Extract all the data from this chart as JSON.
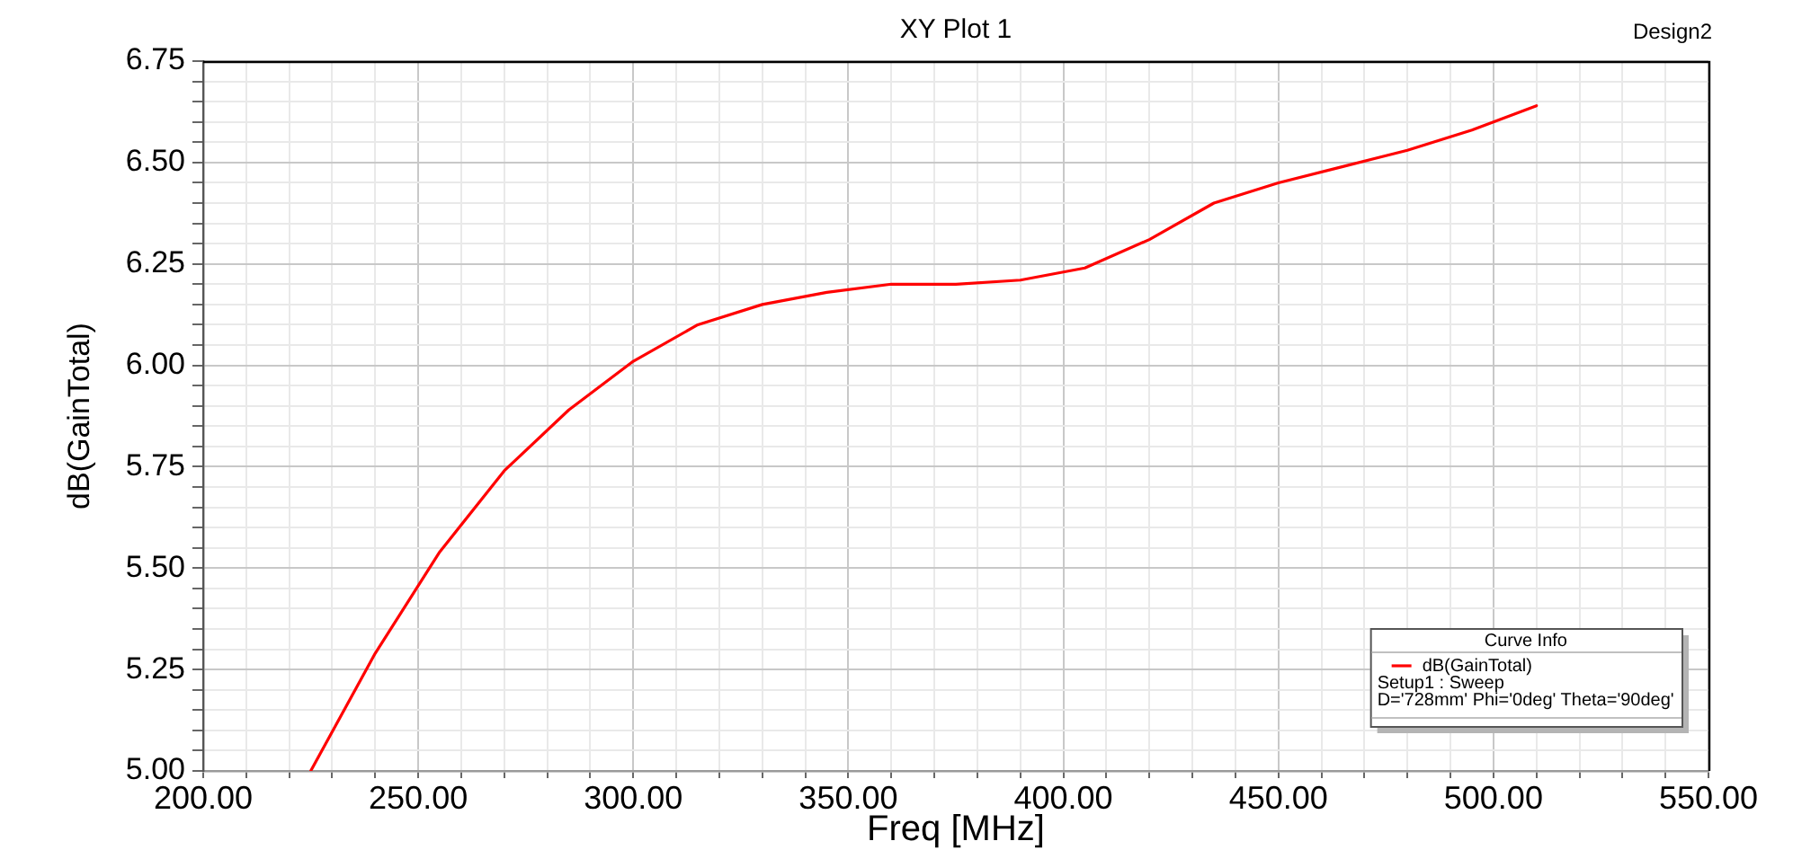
{
  "chart_data": {
    "type": "line",
    "title": "XY Plot 1",
    "xlabel": "Freq [MHz]",
    "ylabel": "dB(GainTotal)",
    "legend_title": "Curve Info",
    "annotations": [
      "Design2",
      "Setup1 : Sweep",
      "D='728mm' Phi='0deg' Theta='90deg'"
    ],
    "x": [
      225,
      240,
      255,
      270,
      285,
      300,
      315,
      330,
      345,
      360,
      375,
      390,
      405,
      420,
      435,
      450,
      465,
      480,
      495,
      510
    ],
    "series": [
      {
        "name": "dB(GainTotal)",
        "color": "#ff0000",
        "values": [
          5.0,
          5.29,
          5.54,
          5.74,
          5.89,
          6.01,
          6.1,
          6.15,
          6.18,
          6.2,
          6.2,
          6.21,
          6.24,
          6.31,
          6.4,
          6.45,
          6.49,
          6.53,
          6.58,
          6.64
        ]
      }
    ],
    "xlim": [
      200,
      550
    ],
    "xticks": [
      {
        "value": 200,
        "label": "200.00"
      },
      {
        "value": 210,
        "label": null
      },
      {
        "value": 220,
        "label": null
      },
      {
        "value": 230,
        "label": null
      },
      {
        "value": 240,
        "label": null
      },
      {
        "value": 250,
        "label": "250.00"
      },
      {
        "value": 260,
        "label": null
      },
      {
        "value": 270,
        "label": null
      },
      {
        "value": 280,
        "label": null
      },
      {
        "value": 290,
        "label": null
      },
      {
        "value": 300,
        "label": "300.00"
      },
      {
        "value": 310,
        "label": null
      },
      {
        "value": 320,
        "label": null
      },
      {
        "value": 330,
        "label": null
      },
      {
        "value": 340,
        "label": null
      },
      {
        "value": 350,
        "label": "350.00"
      },
      {
        "value": 360,
        "label": null
      },
      {
        "value": 370,
        "label": null
      },
      {
        "value": 380,
        "label": null
      },
      {
        "value": 390,
        "label": null
      },
      {
        "value": 400,
        "label": "400.00"
      },
      {
        "value": 410,
        "label": null
      },
      {
        "value": 420,
        "label": null
      },
      {
        "value": 430,
        "label": null
      },
      {
        "value": 440,
        "label": null
      },
      {
        "value": 450,
        "label": "450.00"
      },
      {
        "value": 460,
        "label": null
      },
      {
        "value": 470,
        "label": null
      },
      {
        "value": 480,
        "label": null
      },
      {
        "value": 490,
        "label": null
      },
      {
        "value": 500,
        "label": "500.00"
      },
      {
        "value": 510,
        "label": null
      },
      {
        "value": 520,
        "label": null
      },
      {
        "value": 530,
        "label": null
      },
      {
        "value": 540,
        "label": null
      },
      {
        "value": 550,
        "label": "550.00"
      }
    ],
    "ylim": [
      5.0,
      6.75
    ],
    "yticks": [
      {
        "value": 5.0,
        "label": "5.00"
      },
      {
        "value": 5.05,
        "label": null
      },
      {
        "value": 5.1,
        "label": null
      },
      {
        "value": 5.15,
        "label": null
      },
      {
        "value": 5.2,
        "label": null
      },
      {
        "value": 5.25,
        "label": "5.25"
      },
      {
        "value": 5.3,
        "label": null
      },
      {
        "value": 5.35,
        "label": null
      },
      {
        "value": 5.4,
        "label": null
      },
      {
        "value": 5.45,
        "label": null
      },
      {
        "value": 5.5,
        "label": "5.50"
      },
      {
        "value": 5.55,
        "label": null
      },
      {
        "value": 5.6,
        "label": null
      },
      {
        "value": 5.65,
        "label": null
      },
      {
        "value": 5.7,
        "label": null
      },
      {
        "value": 5.75,
        "label": "5.75"
      },
      {
        "value": 5.8,
        "label": null
      },
      {
        "value": 5.85,
        "label": null
      },
      {
        "value": 5.9,
        "label": null
      },
      {
        "value": 5.95,
        "label": null
      },
      {
        "value": 6.0,
        "label": "6.00"
      },
      {
        "value": 6.05,
        "label": null
      },
      {
        "value": 6.1,
        "label": null
      },
      {
        "value": 6.15,
        "label": null
      },
      {
        "value": 6.2,
        "label": null
      },
      {
        "value": 6.25,
        "label": "6.25"
      },
      {
        "value": 6.3,
        "label": null
      },
      {
        "value": 6.35,
        "label": null
      },
      {
        "value": 6.4,
        "label": null
      },
      {
        "value": 6.45,
        "label": null
      },
      {
        "value": 6.5,
        "label": "6.50"
      },
      {
        "value": 6.55,
        "label": null
      },
      {
        "value": 6.6,
        "label": null
      },
      {
        "value": 6.65,
        "label": null
      },
      {
        "value": 6.7,
        "label": null
      },
      {
        "value": 6.75,
        "label": "6.75"
      }
    ],
    "grid": true,
    "legend": "bottom right",
    "marker": "none",
    "line_style": "solid"
  }
}
